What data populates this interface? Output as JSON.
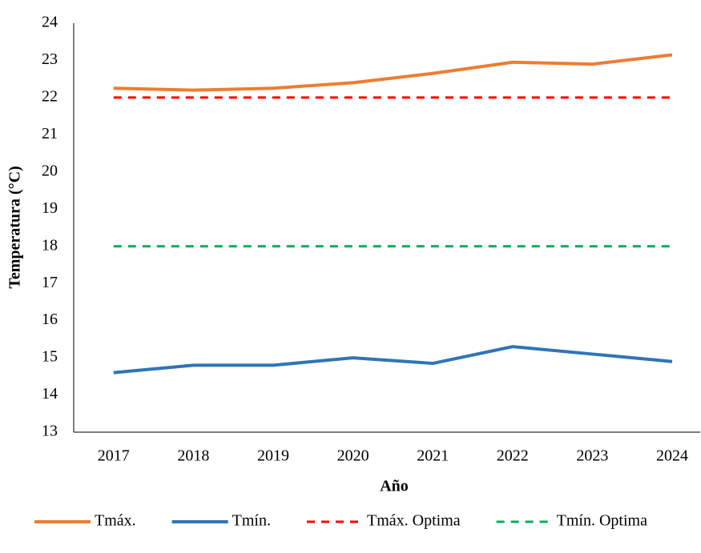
{
  "chart_data": {
    "type": "line",
    "x_label": "Año",
    "y_label": "Temperatura (°C)",
    "categories": [
      "2017",
      "2018",
      "2019",
      "2020",
      "2021",
      "2022",
      "2023",
      "2024"
    ],
    "series": [
      {
        "name": "Tmáx.",
        "color": "#ED7D31",
        "dashed": false,
        "values": [
          22.25,
          22.2,
          22.25,
          22.4,
          22.65,
          22.95,
          22.9,
          23.15
        ]
      },
      {
        "name": "Tmín.",
        "color": "#2E75B6",
        "dashed": false,
        "values": [
          14.6,
          14.8,
          14.8,
          15.0,
          14.85,
          15.3,
          15.1,
          14.9
        ]
      },
      {
        "name": "Tmáx. Optima",
        "color": "#FF0000",
        "dashed": true,
        "values": [
          22,
          22,
          22,
          22,
          22,
          22,
          22,
          22
        ]
      },
      {
        "name": "Tmín. Optima",
        "color": "#00B050",
        "dashed": true,
        "values": [
          18,
          18,
          18,
          18,
          18,
          18,
          18,
          18
        ]
      }
    ],
    "ylim": [
      13,
      24
    ],
    "yticks": [
      13,
      14,
      15,
      16,
      17,
      18,
      19,
      20,
      21,
      22,
      23,
      24
    ],
    "grid": false,
    "legend": "bottom"
  }
}
